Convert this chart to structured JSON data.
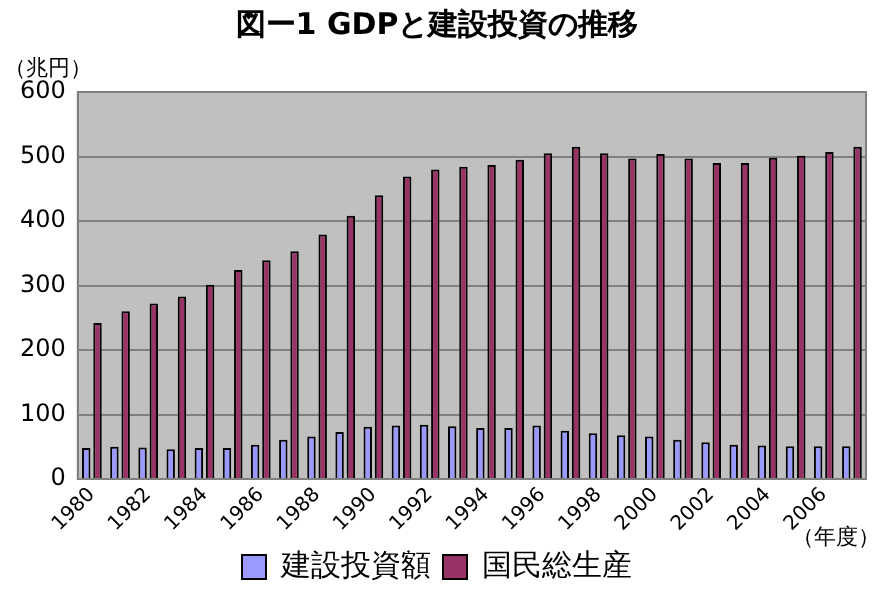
{
  "chart_data": {
    "type": "bar",
    "title": "図ー1 GDPと建設投資の推移",
    "ylabel": "（兆円）",
    "xlabel": "（年度）",
    "categories": [
      "1980",
      null,
      "1982",
      null,
      "1984",
      null,
      "1986",
      null,
      "1988",
      null,
      "1990",
      null,
      "1992",
      null,
      "1994",
      null,
      "1996",
      null,
      "1998",
      null,
      "2000",
      null,
      "2002",
      null,
      "2004",
      null,
      "2006",
      null
    ],
    "series": [
      {
        "name": "建設投資額",
        "color": "#9999ff",
        "values": [
          48,
          50,
          49,
          46,
          48,
          48,
          53,
          61,
          66,
          73,
          81,
          83,
          84,
          82,
          79,
          79,
          83,
          75,
          71,
          68,
          66,
          61,
          57,
          53,
          52,
          51,
          51,
          51
        ]
      },
      {
        "name": "国民総生産",
        "color": "#993366",
        "values": [
          242,
          260,
          272,
          283,
          301,
          324,
          339,
          353,
          379,
          408,
          440,
          469,
          480,
          484,
          487,
          495,
          505,
          515,
          505,
          497,
          504,
          497,
          490,
          490,
          498,
          501,
          507,
          515
        ]
      }
    ],
    "ylim": [
      0,
      600
    ],
    "yticks": [
      0,
      100,
      200,
      300,
      400,
      500,
      600
    ],
    "grid": "y",
    "legend": "bottom"
  }
}
